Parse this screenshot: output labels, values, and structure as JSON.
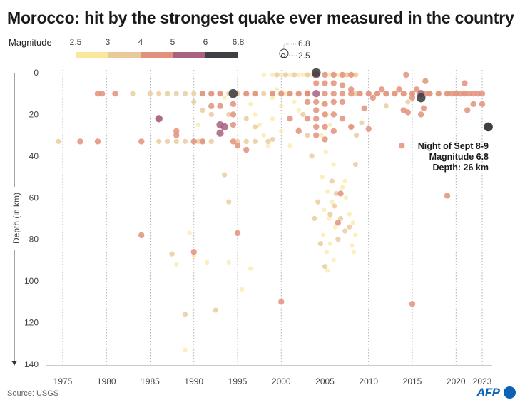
{
  "chart_data": {
    "type": "scatter",
    "title": "Morocco: hit by the strongest quake ever measured in the country",
    "xlabel": "",
    "ylabel": "Depth (in km)",
    "xlim": [
      1973,
      2025
    ],
    "ylim": [
      0,
      140
    ],
    "x_ticks": [
      "1975",
      "1980",
      "1985",
      "1990",
      "1995",
      "2000",
      "2005",
      "2010",
      "2015",
      "2020",
      "2023"
    ],
    "y_ticks": [
      "0",
      "20",
      "40",
      "60",
      "80",
      "100",
      "120",
      "140"
    ],
    "legend": {
      "title": "Magnitude",
      "labels": [
        "2.5",
        "3",
        "4",
        "5",
        "6",
        "6.8"
      ],
      "colors": [
        "#fbe79b",
        "#e9c99a",
        "#e2907b",
        "#a7627e",
        "#404044"
      ],
      "size_labels": [
        "6.8",
        "2.5"
      ]
    },
    "annotation": {
      "lines": [
        "Night of Sept 8-9",
        "Magnitude 6.8",
        "Depth: 26 km"
      ],
      "x": 2023.7,
      "y": 26,
      "magnitude": 6.8
    },
    "series": [
      {
        "name": "2.5-3",
        "color": "#fbe79b",
        "opacity": 0.65,
        "points": [
          [
            1998,
            1
          ],
          [
            1999,
            1
          ],
          [
            2000,
            1
          ],
          [
            2001,
            1
          ],
          [
            2002,
            1
          ],
          [
            2002.5,
            1
          ],
          [
            2003,
            1
          ],
          [
            2003.5,
            1
          ],
          [
            2005.5,
            1
          ],
          [
            2006,
            1
          ],
          [
            2006.5,
            1
          ],
          [
            2007,
            1
          ],
          [
            2007.5,
            1
          ],
          [
            2008,
            1
          ],
          [
            2008.6,
            1
          ],
          [
            1999.5,
            8
          ],
          [
            2000.5,
            10
          ],
          [
            2001.5,
            14
          ],
          [
            2002,
            18
          ],
          [
            2000,
            16
          ],
          [
            1999,
            12
          ],
          [
            2003,
            9
          ],
          [
            2004.8,
            15
          ],
          [
            2005.2,
            20
          ],
          [
            2005.6,
            25
          ],
          [
            2004.6,
            30
          ],
          [
            2005.1,
            38
          ],
          [
            2006,
            44
          ],
          [
            2004.7,
            50
          ],
          [
            2005.3,
            57
          ],
          [
            2005.8,
            62
          ],
          [
            2004.9,
            66
          ],
          [
            2005.5,
            70
          ],
          [
            2006.2,
            74
          ],
          [
            2004.8,
            78
          ],
          [
            2005.6,
            82
          ],
          [
            2005.2,
            86
          ],
          [
            2006,
            90
          ],
          [
            2005.3,
            95
          ],
          [
            2007,
            55
          ],
          [
            2007.4,
            60
          ],
          [
            2007.8,
            68
          ],
          [
            2008.2,
            72
          ],
          [
            2008.5,
            78
          ],
          [
            2008.1,
            83
          ],
          [
            2007.3,
            52
          ],
          [
            2008.3,
            86
          ],
          [
            1996.5,
            15
          ],
          [
            1997,
            20
          ],
          [
            1997.5,
            25
          ],
          [
            1998,
            30
          ],
          [
            1998.5,
            35
          ],
          [
            1993,
            10
          ],
          [
            1993.5,
            12
          ],
          [
            1999,
            22
          ],
          [
            2000,
            28
          ],
          [
            2001,
            35
          ],
          [
            2002,
            27
          ],
          [
            1989.5,
            77
          ],
          [
            1990,
            88
          ],
          [
            1991.5,
            91
          ],
          [
            1994,
            91
          ],
          [
            1995.5,
            104
          ],
          [
            1996.5,
            94
          ],
          [
            1988,
            92
          ],
          [
            1989,
            133
          ],
          [
            1990.5,
            25
          ]
        ]
      },
      {
        "name": "3-4",
        "color": "#e9c99a",
        "opacity": 0.8,
        "points": [
          [
            1974.5,
            33
          ],
          [
            1986,
            33
          ],
          [
            1987,
            33
          ],
          [
            1988,
            33
          ],
          [
            1989,
            33
          ],
          [
            1990.5,
            33
          ],
          [
            1991,
            33
          ],
          [
            1992,
            33
          ],
          [
            1995,
            33
          ],
          [
            1996,
            33
          ],
          [
            1997,
            33
          ],
          [
            1998.5,
            33
          ],
          [
            1983,
            10
          ],
          [
            1985,
            10
          ],
          [
            1986,
            10
          ],
          [
            1987,
            10
          ],
          [
            1988,
            10
          ],
          [
            1989,
            10
          ],
          [
            1990,
            10
          ],
          [
            1991,
            10
          ],
          [
            1992,
            10
          ],
          [
            1993,
            10
          ],
          [
            1994,
            10
          ],
          [
            1995,
            10
          ],
          [
            1996,
            10
          ],
          [
            1997,
            10
          ],
          [
            1998,
            10
          ],
          [
            1999,
            10
          ],
          [
            2000,
            10
          ],
          [
            2001,
            10
          ],
          [
            2002,
            10
          ],
          [
            2003,
            10
          ],
          [
            2008.5,
            10
          ],
          [
            2009,
            10
          ],
          [
            2010,
            10
          ],
          [
            2011,
            10
          ],
          [
            2012,
            10
          ],
          [
            2013,
            10
          ],
          [
            2014,
            10
          ],
          [
            2015,
            10
          ],
          [
            2016,
            10
          ],
          [
            2017,
            10
          ],
          [
            2018,
            10
          ],
          [
            2019,
            10
          ],
          [
            2020,
            10
          ],
          [
            2021,
            10
          ],
          [
            1999.5,
            1
          ],
          [
            2000.5,
            1
          ],
          [
            2001.5,
            1
          ],
          [
            2003,
            1
          ],
          [
            2007.5,
            1
          ],
          [
            2008.5,
            1
          ],
          [
            1987.5,
            87
          ],
          [
            1989,
            116
          ],
          [
            1990,
            14
          ],
          [
            1991,
            18
          ],
          [
            1992,
            20
          ],
          [
            1994,
            20
          ],
          [
            1996,
            22
          ],
          [
            1997,
            26
          ],
          [
            1999,
            32
          ],
          [
            1993.5,
            49
          ],
          [
            1994,
            62
          ],
          [
            2005.8,
            52
          ],
          [
            2006.3,
            58
          ],
          [
            2006.8,
            70
          ],
          [
            2007.3,
            76
          ],
          [
            2006.5,
            80
          ],
          [
            2005.6,
            68
          ],
          [
            2006.1,
            64
          ],
          [
            2007.8,
            74
          ],
          [
            2003.8,
            70
          ],
          [
            2004.2,
            62
          ],
          [
            2004.5,
            82
          ],
          [
            2005,
            93
          ],
          [
            2008.5,
            44
          ],
          [
            2008,
            26
          ],
          [
            2008.6,
            30
          ],
          [
            2009.2,
            24
          ],
          [
            2003.5,
            40
          ],
          [
            2003,
            30
          ],
          [
            2002.5,
            20
          ],
          [
            1992.5,
            114
          ],
          [
            2012,
            16
          ],
          [
            2014.5,
            14
          ]
        ]
      },
      {
        "name": "4-5",
        "color": "#e2907b",
        "opacity": 0.85,
        "points": [
          [
            1977,
            33
          ],
          [
            1979,
            33
          ],
          [
            1984,
            33
          ],
          [
            1979,
            10
          ],
          [
            1979.5,
            10
          ],
          [
            1981,
            10
          ],
          [
            1988,
            28
          ],
          [
            1988,
            30
          ],
          [
            1986,
            22
          ],
          [
            1991,
            10
          ],
          [
            1992,
            10
          ],
          [
            1993,
            10
          ],
          [
            1996,
            10
          ],
          [
            1997,
            10
          ],
          [
            1999,
            10
          ],
          [
            2000,
            10
          ],
          [
            2001,
            10
          ],
          [
            2002,
            10
          ],
          [
            2003,
            10
          ],
          [
            2005,
            10
          ],
          [
            2006,
            10
          ],
          [
            2007,
            10
          ],
          [
            2008,
            10
          ],
          [
            2009,
            10
          ],
          [
            2010,
            10
          ],
          [
            2011,
            10
          ],
          [
            2012,
            10
          ],
          [
            2013,
            10
          ],
          [
            2014,
            10
          ],
          [
            2015,
            10
          ],
          [
            2016.5,
            10
          ],
          [
            2017,
            10
          ],
          [
            2018,
            10
          ],
          [
            2019,
            10
          ],
          [
            2019.5,
            10
          ],
          [
            2020,
            10
          ],
          [
            2020.5,
            10
          ],
          [
            2021,
            10
          ],
          [
            2021.5,
            10
          ],
          [
            2022,
            10
          ],
          [
            2022.5,
            10
          ],
          [
            2023,
            10
          ],
          [
            2004,
            1
          ],
          [
            2004,
            5
          ],
          [
            2004,
            14
          ],
          [
            2004,
            18
          ],
          [
            2004,
            22
          ],
          [
            2004,
            26
          ],
          [
            2004,
            30
          ],
          [
            2005,
            1
          ],
          [
            2005,
            5
          ],
          [
            2005,
            15
          ],
          [
            2005,
            20
          ],
          [
            2005,
            26
          ],
          [
            2005,
            32
          ],
          [
            2006,
            1
          ],
          [
            2006,
            5
          ],
          [
            2006,
            14
          ],
          [
            2006,
            20
          ],
          [
            2006,
            28
          ],
          [
            2007,
            1
          ],
          [
            2007,
            6
          ],
          [
            2007,
            14
          ],
          [
            2007,
            22
          ],
          [
            2008,
            1
          ],
          [
            2008,
            8
          ],
          [
            2008,
            26
          ],
          [
            2003,
            10
          ],
          [
            2003,
            14
          ],
          [
            2003,
            22
          ],
          [
            2001,
            22
          ],
          [
            2002,
            28
          ],
          [
            1994.5,
            15
          ],
          [
            1994.5,
            20
          ],
          [
            1994.5,
            25
          ],
          [
            1994.5,
            33
          ],
          [
            1995,
            35
          ],
          [
            1996,
            37
          ],
          [
            1993,
            16
          ],
          [
            1992,
            16
          ],
          [
            1990,
            33
          ],
          [
            1991,
            33
          ],
          [
            1984,
            78
          ],
          [
            1990,
            86
          ],
          [
            1995,
            77
          ],
          [
            2000,
            110
          ],
          [
            2015,
            111
          ],
          [
            2019,
            59
          ],
          [
            2006.8,
            58
          ],
          [
            2006.5,
            72
          ],
          [
            2010,
            27
          ],
          [
            2009.5,
            17
          ],
          [
            2010.5,
            12
          ],
          [
            2011.5,
            8
          ],
          [
            2013.5,
            8
          ],
          [
            2014,
            18
          ],
          [
            2014.5,
            19
          ],
          [
            2015,
            12
          ],
          [
            2015.5,
            8
          ],
          [
            2016,
            20
          ],
          [
            2016.3,
            17
          ],
          [
            2016.5,
            4
          ],
          [
            2014.3,
            1
          ],
          [
            2021,
            5
          ],
          [
            2021.3,
            18
          ],
          [
            2022,
            15
          ],
          [
            2023,
            15
          ],
          [
            2013.8,
            35
          ]
        ]
      },
      {
        "name": "5-6",
        "color": "#a7627e",
        "opacity": 0.85,
        "points": [
          [
            1986,
            22
          ],
          [
            1993,
            25
          ],
          [
            1993,
            29
          ],
          [
            1993.5,
            26
          ],
          [
            2004,
            10
          ],
          [
            2016,
            10
          ],
          [
            2004,
            1
          ]
        ]
      },
      {
        "name": "6-6.8",
        "color": "#404044",
        "opacity": 0.9,
        "points": [
          [
            2004,
            0
          ],
          [
            1994.5,
            10
          ],
          [
            2016,
            12
          ]
        ]
      }
    ]
  }
}
